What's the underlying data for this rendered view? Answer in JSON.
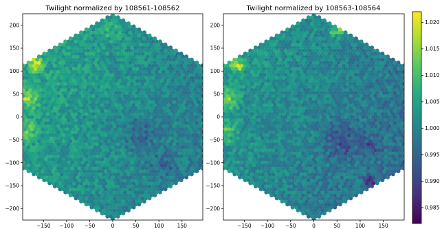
{
  "chart_data": [
    {
      "type": "scatter",
      "title": "Twilight normalized by 108561-108562",
      "xlabel": "",
      "ylabel": "",
      "xlim": [
        -195,
        195
      ],
      "ylim": [
        -225,
        225
      ],
      "xticks": [
        -150,
        -100,
        -50,
        0,
        50,
        100,
        150
      ],
      "yticks": [
        200,
        150,
        100,
        50,
        0,
        -50,
        -100,
        -150,
        -200
      ],
      "marker": "hexagonal focal-plane fibers",
      "hex_outline": [
        [
          0,
          225
        ],
        [
          195,
          112.5
        ],
        [
          195,
          -112.5
        ],
        [
          0,
          -225
        ],
        [
          -195,
          -112.5
        ],
        [
          -195,
          112.5
        ]
      ],
      "color_regions": [
        {
          "x": -165,
          "y": 115,
          "radius": 22,
          "value": 1.019
        },
        {
          "x": -185,
          "y": 40,
          "radius": 35,
          "value": 1.012
        },
        {
          "x": -185,
          "y": -30,
          "radius": 32,
          "value": 1.011
        },
        {
          "x": -120,
          "y": 180,
          "radius": 30,
          "value": 1.006
        },
        {
          "x": 0,
          "y": 190,
          "radius": 30,
          "value": 1.007
        },
        {
          "x": 60,
          "y": -40,
          "radius": 55,
          "value": 0.996
        },
        {
          "x": 110,
          "y": -100,
          "radius": 40,
          "value": 0.997
        }
      ],
      "base_value": 1.002
    },
    {
      "type": "scatter",
      "title": "Twilight normalized by 108563-108564",
      "xlabel": "",
      "ylabel": "",
      "xlim": [
        -195,
        195
      ],
      "ylim": [
        -225,
        225
      ],
      "xticks": [
        -150,
        -100,
        -50,
        0,
        50,
        100,
        150
      ],
      "yticks": [
        200,
        150,
        100,
        50,
        0,
        -50,
        -100,
        -150,
        -200
      ],
      "marker": "hexagonal focal-plane fibers",
      "hex_outline": [
        [
          0,
          225
        ],
        [
          195,
          112.5
        ],
        [
          195,
          -112.5
        ],
        [
          0,
          -225
        ],
        [
          -195,
          -112.5
        ],
        [
          -195,
          112.5
        ]
      ],
      "color_regions": [
        {
          "x": -165,
          "y": 115,
          "radius": 22,
          "value": 1.018
        },
        {
          "x": -185,
          "y": 40,
          "radius": 35,
          "value": 1.011
        },
        {
          "x": -185,
          "y": -30,
          "radius": 32,
          "value": 1.01
        },
        {
          "x": 50,
          "y": 190,
          "radius": 25,
          "value": 1.012
        },
        {
          "x": 60,
          "y": -50,
          "radius": 60,
          "value": 0.993
        },
        {
          "x": 120,
          "y": -140,
          "radius": 18,
          "value": 0.984
        },
        {
          "x": 120,
          "y": -60,
          "radius": 35,
          "value": 0.995
        }
      ],
      "base_value": 1.0
    }
  ],
  "colorbar": {
    "colormap": "viridis",
    "vmin": 0.982,
    "vmax": 1.022,
    "ticks": [
      "1.020",
      "1.015",
      "1.010",
      "1.005",
      "1.000",
      "0.995",
      "0.990",
      "0.985"
    ],
    "tick_values": [
      1.02,
      1.015,
      1.01,
      1.005,
      1.0,
      0.995,
      0.99,
      0.985
    ]
  }
}
